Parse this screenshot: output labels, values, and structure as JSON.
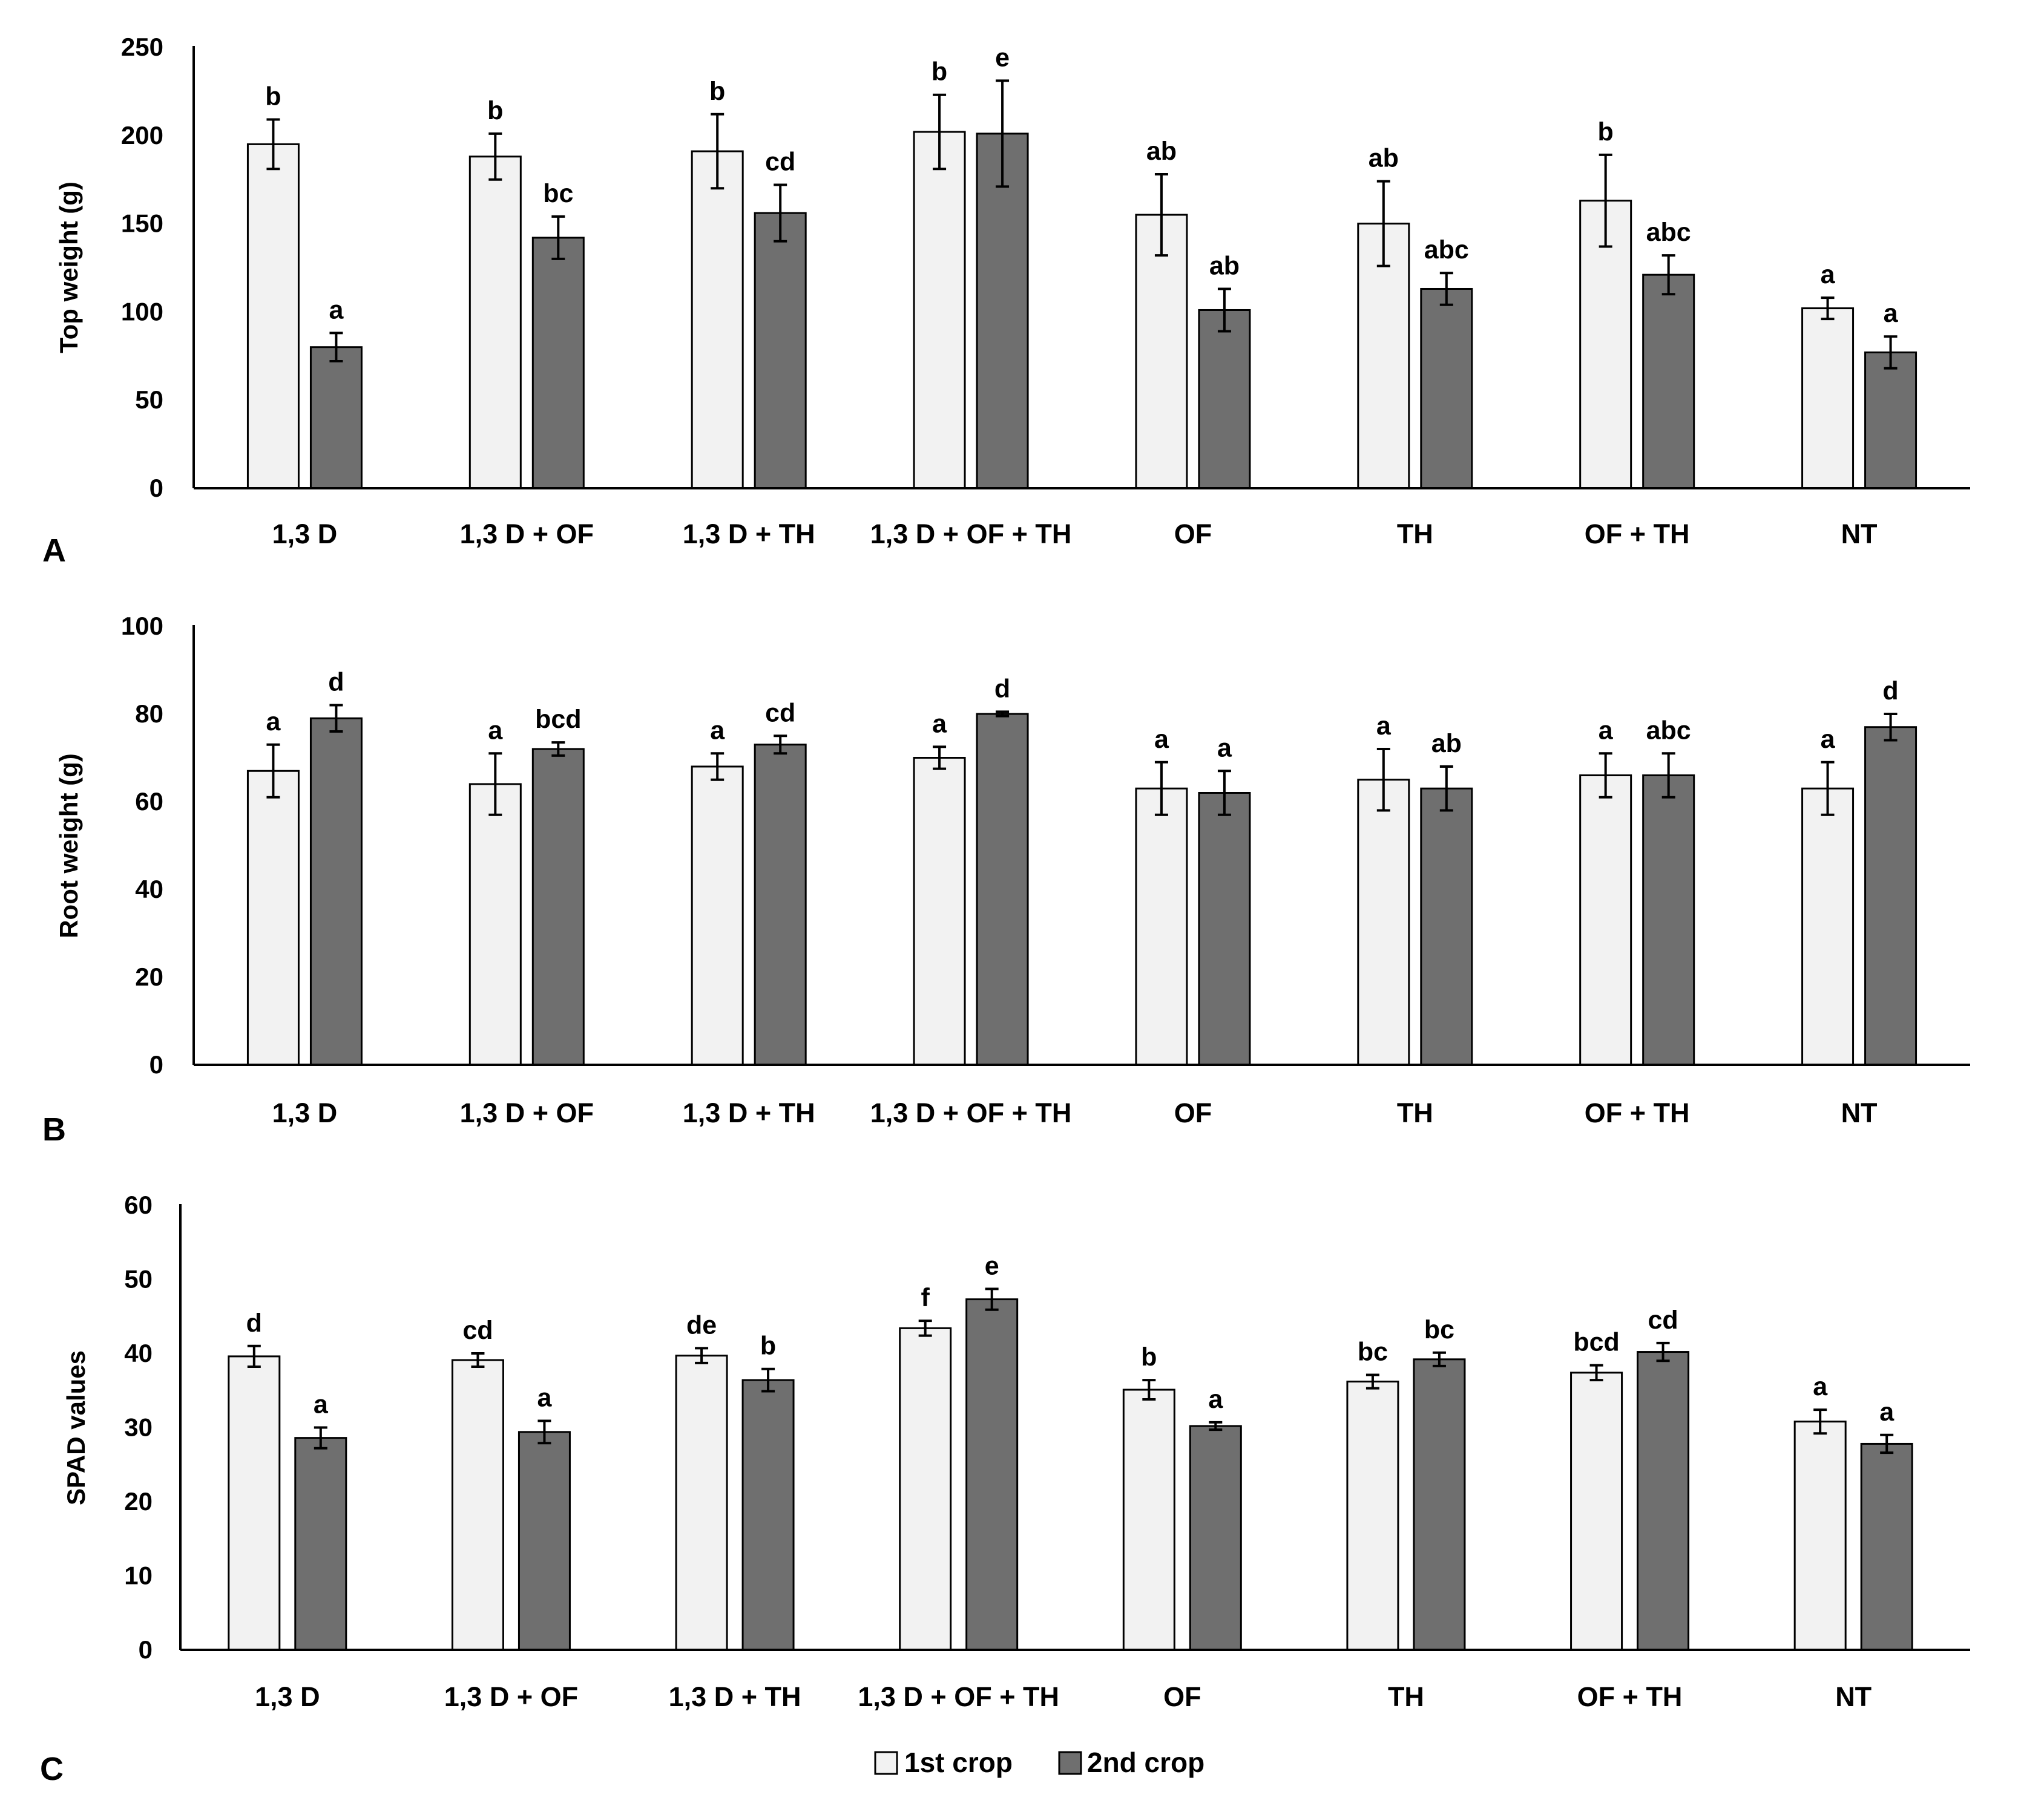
{
  "legend": {
    "series": [
      {
        "name": "1st crop",
        "color": "#f2f2f2"
      },
      {
        "name": "2nd crop",
        "color": "#6f6f6f"
      }
    ]
  },
  "chart_data": [
    {
      "panel": "A",
      "type": "bar",
      "ylabel": "Top weight (g)",
      "xlabel": "",
      "ylim": [
        0,
        250
      ],
      "yticks": [
        0,
        50,
        100,
        150,
        200,
        250
      ],
      "categories": [
        "1,3 D",
        "1,3 D + OF",
        "1,3 D + TH",
        "1,3 D + OF + TH",
        "OF",
        "TH",
        "OF + TH",
        "NT"
      ],
      "series": [
        {
          "name": "1st crop",
          "values": [
            195,
            188,
            191,
            202,
            155,
            150,
            163,
            102
          ],
          "errors": [
            14,
            13,
            21,
            21,
            23,
            24,
            26,
            6
          ],
          "letters": [
            "b",
            "b",
            "b",
            "b",
            "ab",
            "ab",
            "b",
            "a"
          ]
        },
        {
          "name": "2nd crop",
          "values": [
            80,
            142,
            156,
            201,
            101,
            113,
            121,
            77
          ],
          "errors": [
            8,
            12,
            16,
            30,
            12,
            9,
            11,
            9
          ],
          "letters": [
            "a",
            "bc",
            "cd",
            "e",
            "ab",
            "abc",
            "abc",
            "a"
          ]
        }
      ]
    },
    {
      "panel": "B",
      "type": "bar",
      "ylabel": "Root weight (g)",
      "xlabel": "",
      "ylim": [
        0,
        100
      ],
      "yticks": [
        0,
        20,
        40,
        60,
        80,
        100
      ],
      "categories": [
        "1,3 D",
        "1,3 D + OF",
        "1,3 D + TH",
        "1,3 D + OF + TH",
        "OF",
        "TH",
        "OF + TH",
        "NT"
      ],
      "series": [
        {
          "name": "1st crop",
          "values": [
            67,
            64,
            68,
            70,
            63,
            65,
            66,
            63
          ],
          "errors": [
            6,
            7,
            3,
            2.5,
            6,
            7,
            5,
            6
          ],
          "letters": [
            "a",
            "a",
            "a",
            "a",
            "a",
            "a",
            "a",
            "a"
          ]
        },
        {
          "name": "2nd crop",
          "values": [
            79,
            72,
            73,
            80,
            62,
            63,
            66,
            77
          ],
          "errors": [
            3,
            1.5,
            2,
            0.5,
            5,
            5,
            5,
            3
          ],
          "letters": [
            "d",
            "bcd",
            "cd",
            "d",
            "a",
            "ab",
            "abc",
            "d"
          ]
        }
      ]
    },
    {
      "panel": "C",
      "type": "bar",
      "ylabel": "SPAD values",
      "xlabel": "",
      "ylim": [
        0,
        60
      ],
      "yticks": [
        0,
        10,
        20,
        30,
        40,
        50,
        60
      ],
      "categories": [
        "1,3 D",
        "1,3 D + OF",
        "1,3 D + TH",
        "1,3 D + OF + TH",
        "OF",
        "TH",
        "OF + TH",
        "NT"
      ],
      "series": [
        {
          "name": "1st crop",
          "values": [
            39.6,
            39.1,
            39.7,
            43.4,
            35.1,
            36.2,
            37.4,
            30.8
          ],
          "errors": [
            1.4,
            0.9,
            1.0,
            1.0,
            1.3,
            0.9,
            1.0,
            1.6
          ],
          "letters": [
            "d",
            "cd",
            "de",
            "f",
            "b",
            "bc",
            "bcd",
            "a"
          ]
        },
        {
          "name": "2nd crop",
          "values": [
            28.6,
            29.4,
            36.4,
            47.3,
            30.2,
            39.2,
            40.2,
            27.8
          ],
          "errors": [
            1.4,
            1.5,
            1.5,
            1.4,
            0.5,
            0.9,
            1.2,
            1.2
          ],
          "letters": [
            "a",
            "a",
            "b",
            "e",
            "a",
            "bc",
            "cd",
            "a"
          ]
        }
      ]
    }
  ]
}
